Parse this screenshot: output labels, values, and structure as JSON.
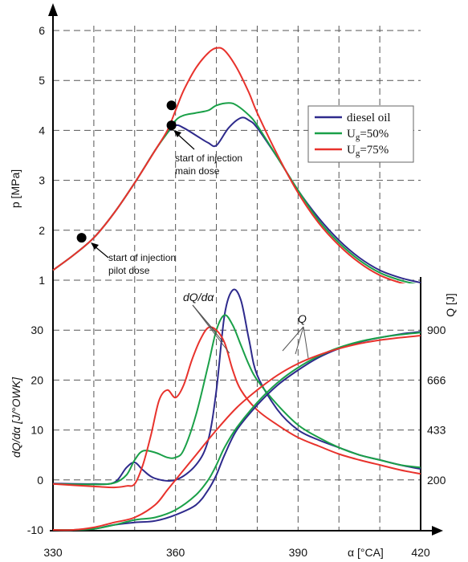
{
  "chart_data": [
    {
      "type": "line",
      "panel": "pressure",
      "xlabel": "α [°CA]",
      "ylabel": "p [MPa]",
      "xlim": [
        330,
        420
      ],
      "ylim": [
        0.8,
        6.2
      ],
      "xticks": [
        330,
        360,
        390,
        420
      ],
      "yticks": [
        1,
        2,
        3,
        4,
        5,
        6
      ],
      "grid": "dashed",
      "legend_position": "right",
      "series": [
        {
          "name": "diesel oil",
          "color": "#2e2a8c",
          "x": [
            330,
            335,
            340,
            345,
            350,
            355,
            358,
            360,
            362,
            365,
            368,
            370,
            373,
            376,
            378,
            380,
            385,
            390,
            395,
            400,
            405,
            410,
            415,
            420
          ],
          "y": [
            1.2,
            1.5,
            1.85,
            2.35,
            2.95,
            3.6,
            3.95,
            4.1,
            4.05,
            3.9,
            3.75,
            3.7,
            4.05,
            4.25,
            4.2,
            4.05,
            3.45,
            2.8,
            2.25,
            1.8,
            1.45,
            1.2,
            1.05,
            0.95
          ]
        },
        {
          "name": "Ug=50%",
          "color": "#1aa048",
          "x": [
            330,
            335,
            340,
            345,
            350,
            355,
            358,
            360,
            362,
            365,
            368,
            370,
            373,
            375,
            378,
            380,
            385,
            390,
            395,
            400,
            405,
            410,
            415,
            420
          ],
          "y": [
            1.2,
            1.5,
            1.85,
            2.35,
            2.95,
            3.6,
            3.95,
            4.2,
            4.3,
            4.35,
            4.4,
            4.5,
            4.55,
            4.5,
            4.3,
            4.1,
            3.45,
            2.8,
            2.2,
            1.75,
            1.4,
            1.15,
            1.0,
            0.9
          ]
        },
        {
          "name": "Ug=75%",
          "color": "#e8322c",
          "x": [
            330,
            335,
            340,
            345,
            350,
            355,
            358,
            360,
            362,
            365,
            368,
            370,
            372,
            375,
            378,
            380,
            385,
            390,
            395,
            400,
            405,
            410,
            415,
            420
          ],
          "y": [
            1.2,
            1.5,
            1.85,
            2.35,
            2.95,
            3.6,
            4.0,
            4.4,
            4.8,
            5.25,
            5.55,
            5.65,
            5.6,
            5.25,
            4.75,
            4.35,
            3.5,
            2.75,
            2.15,
            1.7,
            1.35,
            1.1,
            0.95,
            0.85
          ]
        }
      ],
      "points": [
        {
          "x": 337,
          "y": 1.85
        },
        {
          "x": 359,
          "y": 4.5
        },
        {
          "x": 359,
          "y": 4.1
        }
      ],
      "annotations": [
        {
          "lines": [
            "start of injection",
            "main dose"
          ]
        },
        {
          "lines": [
            "start of injection",
            "pilot dose"
          ]
        }
      ]
    },
    {
      "type": "line",
      "panel": "heat release",
      "xlabel": "α [°CA]",
      "ylabel": "dQ/dα [J/°OWK]",
      "y2label": "Q [J]",
      "xlim": [
        330,
        420
      ],
      "ylim": [
        -11,
        41
      ],
      "xticks": [
        330,
        360,
        390,
        420
      ],
      "yticks": [
        -10,
        0,
        10,
        20,
        30
      ],
      "y2ticks": [
        200,
        433,
        666,
        900
      ],
      "grid": "dashed",
      "series": [
        {
          "name": "diesel oil dQ/dα",
          "color": "#2e2a8c",
          "x": [
            330,
            340,
            345,
            348,
            350,
            352,
            355,
            360,
            365,
            368,
            370,
            372,
            374,
            376,
            378,
            380,
            385,
            390,
            395,
            400,
            405,
            410,
            415,
            420
          ],
          "y": [
            -0.7,
            -0.8,
            -0.5,
            2.5,
            3.5,
            2.0,
            0.3,
            0.0,
            3.0,
            8.0,
            18.0,
            33.0,
            38.0,
            36.0,
            28.0,
            21.0,
            14.0,
            10.0,
            8.0,
            6.5,
            5.0,
            4.0,
            3.0,
            2.2
          ]
        },
        {
          "name": "Ug=50% dQ/dα",
          "color": "#1aa048",
          "x": [
            330,
            340,
            345,
            348,
            350,
            352,
            355,
            358,
            360,
            362,
            365,
            368,
            370,
            372,
            374,
            376,
            378,
            380,
            385,
            390,
            395,
            400,
            405,
            410,
            415,
            420
          ],
          "y": [
            -0.8,
            -0.9,
            -0.6,
            1.0,
            4.0,
            5.8,
            5.5,
            4.5,
            4.5,
            6.0,
            13.0,
            23.0,
            30.0,
            33.0,
            31.0,
            27.0,
            23.0,
            20.0,
            15.0,
            11.0,
            8.5,
            6.5,
            5.0,
            4.0,
            3.0,
            2.5
          ]
        },
        {
          "name": "Ug=75% dQ/dα",
          "color": "#e8322c",
          "x": [
            330,
            340,
            345,
            348,
            350,
            352,
            354,
            356,
            358,
            360,
            362,
            364,
            366,
            368,
            370,
            372,
            374,
            376,
            380,
            385,
            390,
            395,
            400,
            405,
            410,
            415,
            420
          ],
          "y": [
            -0.8,
            -1.3,
            -1.5,
            -1.2,
            -0.8,
            3.0,
            9.0,
            16.0,
            18.0,
            16.5,
            19.0,
            24.0,
            28.0,
            30.5,
            30.0,
            27.5,
            22.0,
            18.0,
            14.0,
            11.0,
            8.5,
            6.8,
            5.2,
            4.0,
            3.0,
            2.0,
            1.2
          ]
        },
        {
          "name": "diesel oil Q",
          "color": "#2e2a8c",
          "x": [
            330,
            335,
            340,
            345,
            350,
            355,
            360,
            365,
            368,
            370,
            372,
            375,
            380,
            385,
            390,
            395,
            400,
            405,
            410,
            415,
            420
          ],
          "y": [
            -10.0,
            -10.0,
            -9.8,
            -9.0,
            -8.5,
            -8.2,
            -7.0,
            -5.0,
            -2.0,
            1.0,
            5.0,
            10.0,
            15.0,
            19.0,
            22.0,
            24.5,
            26.3,
            27.6,
            28.5,
            29.2,
            29.7
          ]
        },
        {
          "name": "Ug=50% Q",
          "color": "#1aa048",
          "x": [
            330,
            335,
            340,
            345,
            350,
            355,
            360,
            365,
            368,
            370,
            372,
            375,
            380,
            385,
            390,
            395,
            400,
            405,
            410,
            415,
            420
          ],
          "y": [
            -10.0,
            -10.0,
            -9.8,
            -9.0,
            -8.0,
            -7.5,
            -6.0,
            -3.0,
            0.0,
            3.0,
            6.5,
            10.5,
            15.5,
            19.5,
            22.5,
            24.8,
            26.5,
            27.7,
            28.5,
            29.1,
            29.5
          ]
        },
        {
          "name": "Ug=75% Q",
          "color": "#e8322c",
          "x": [
            330,
            335,
            340,
            345,
            350,
            355,
            358,
            360,
            365,
            370,
            375,
            380,
            385,
            390,
            395,
            400,
            405,
            410,
            415,
            420
          ],
          "y": [
            -10.0,
            -10.0,
            -9.5,
            -8.5,
            -7.5,
            -5.0,
            -2.0,
            0.0,
            5.0,
            10.0,
            14.5,
            18.0,
            21.0,
            23.3,
            25.0,
            26.3,
            27.3,
            28.0,
            28.5,
            28.9
          ]
        }
      ],
      "annotations": [
        {
          "text": "dQ/dα"
        },
        {
          "text": "Q"
        }
      ]
    }
  ]
}
